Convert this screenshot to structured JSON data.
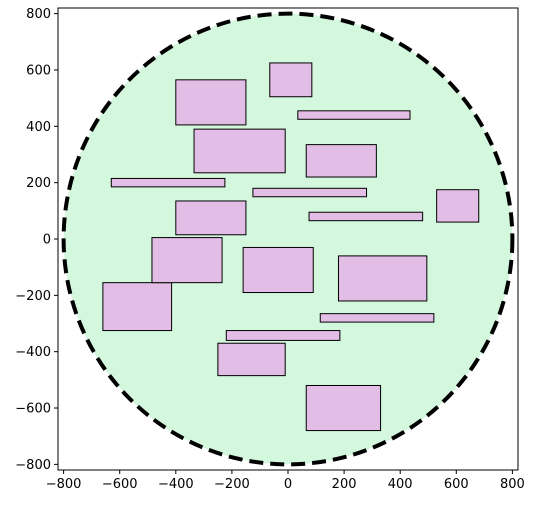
{
  "chart_data": {
    "type": "scatter",
    "title": "",
    "xlabel": "",
    "ylabel": "",
    "xlim": [
      -820,
      820
    ],
    "ylim": [
      -820,
      820
    ],
    "xticks": [
      -800,
      -600,
      -400,
      -200,
      0,
      200,
      400,
      600,
      800
    ],
    "yticks": [
      -800,
      -600,
      -400,
      -200,
      0,
      200,
      400,
      600,
      800
    ],
    "grid": false,
    "circle": {
      "center": [
        0,
        0
      ],
      "radius": 800,
      "fill": "#d4f8de",
      "edge": "#000000",
      "linestyle": "dashed"
    },
    "rect_fill": "#e2bde6",
    "rect_edge": "#000000",
    "rectangles": [
      {
        "x0": 65,
        "x1": 330,
        "y0": -680,
        "y1": -520
      },
      {
        "x0": 115,
        "x1": 520,
        "y0": -295,
        "y1": -265
      },
      {
        "x0": 180,
        "x1": 495,
        "y0": -220,
        "y1": -60
      },
      {
        "x0": -250,
        "x1": -10,
        "y0": -485,
        "y1": -370
      },
      {
        "x0": -220,
        "x1": 185,
        "y0": -360,
        "y1": -325
      },
      {
        "x0": -660,
        "x1": -415,
        "y0": -325,
        "y1": -155
      },
      {
        "x0": -485,
        "x1": -235,
        "y0": -155,
        "y1": 5
      },
      {
        "x0": -160,
        "x1": 90,
        "y0": -190,
        "y1": -30
      },
      {
        "x0": -400,
        "x1": -150,
        "y0": 15,
        "y1": 135
      },
      {
        "x0": 75,
        "x1": 480,
        "y0": 65,
        "y1": 95
      },
      {
        "x0": 530,
        "x1": 680,
        "y0": 60,
        "y1": 175
      },
      {
        "x0": -125,
        "x1": 280,
        "y0": 150,
        "y1": 180
      },
      {
        "x0": -630,
        "x1": -225,
        "y0": 185,
        "y1": 215
      },
      {
        "x0": 65,
        "x1": 315,
        "y0": 220,
        "y1": 335
      },
      {
        "x0": -335,
        "x1": -10,
        "y0": 235,
        "y1": 390
      },
      {
        "x0": -400,
        "x1": -150,
        "y0": 405,
        "y1": 565
      },
      {
        "x0": 35,
        "x1": 435,
        "y0": 425,
        "y1": 455
      },
      {
        "x0": -65,
        "x1": 85,
        "y0": 505,
        "y1": 625
      }
    ]
  }
}
